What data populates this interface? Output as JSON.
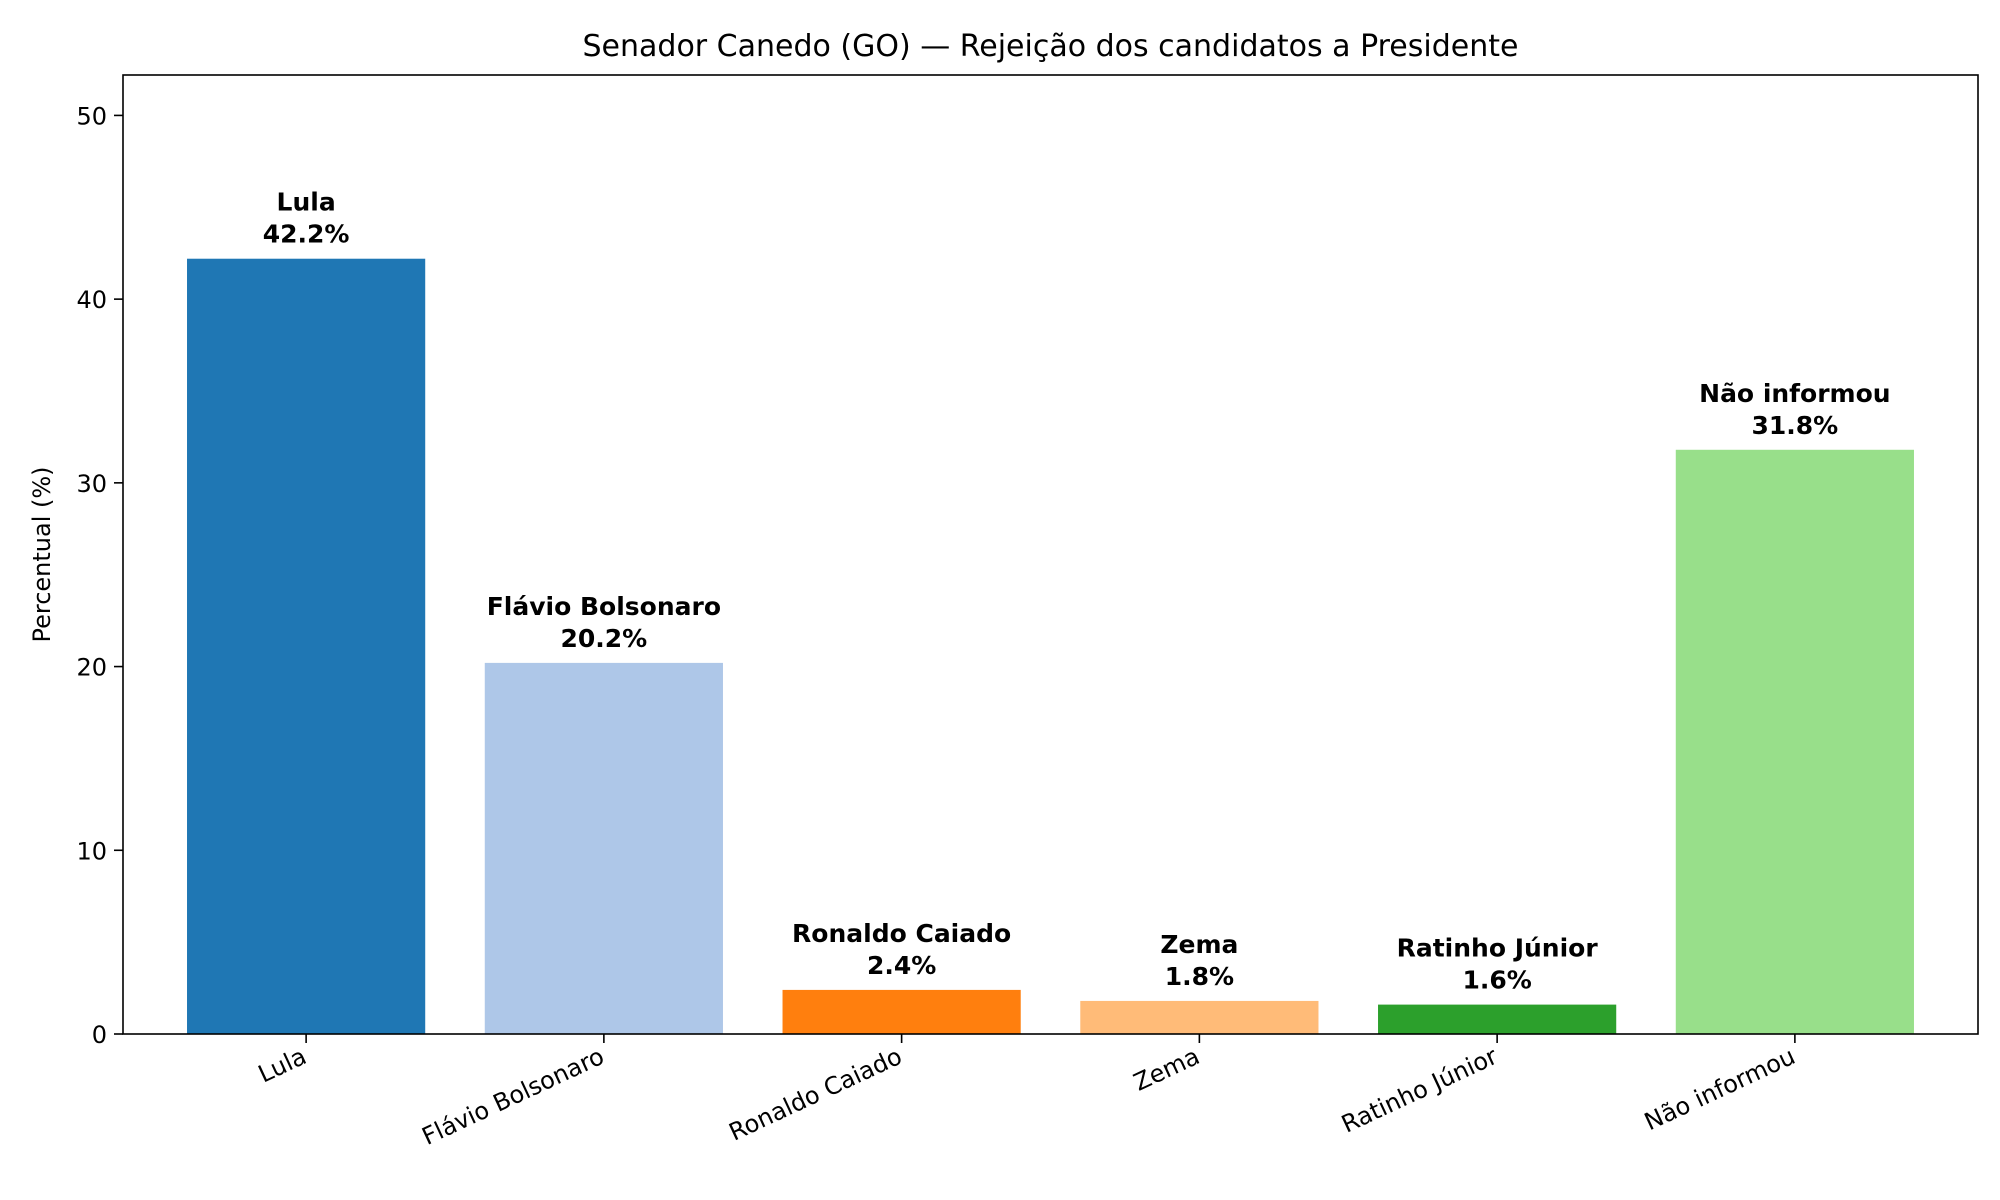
{
  "chart_data": {
    "type": "bar",
    "title": "Senador Canedo (GO) — Rejeição dos candidatos a Presidente",
    "xlabel": "",
    "ylabel": "Percentual (%)",
    "ylim": [
      0,
      52.2
    ],
    "yticks": [
      0,
      10,
      20,
      30,
      40,
      50
    ],
    "grid": false,
    "categories": [
      "Lula",
      "Flávio Bolsonaro",
      "Ronaldo Caiado",
      "Zema",
      "Ratinho Júnior",
      "Não informou"
    ],
    "values": [
      42.2,
      20.2,
      2.4,
      1.8,
      1.6,
      31.8
    ],
    "value_labels": [
      "42.2%",
      "20.2%",
      "2.4%",
      "1.8%",
      "1.6%",
      "31.8%"
    ],
    "colors": [
      "#1f77b4",
      "#aec7e8",
      "#ff7f0e",
      "#ffbb78",
      "#2ca02c",
      "#98df8a"
    ]
  }
}
